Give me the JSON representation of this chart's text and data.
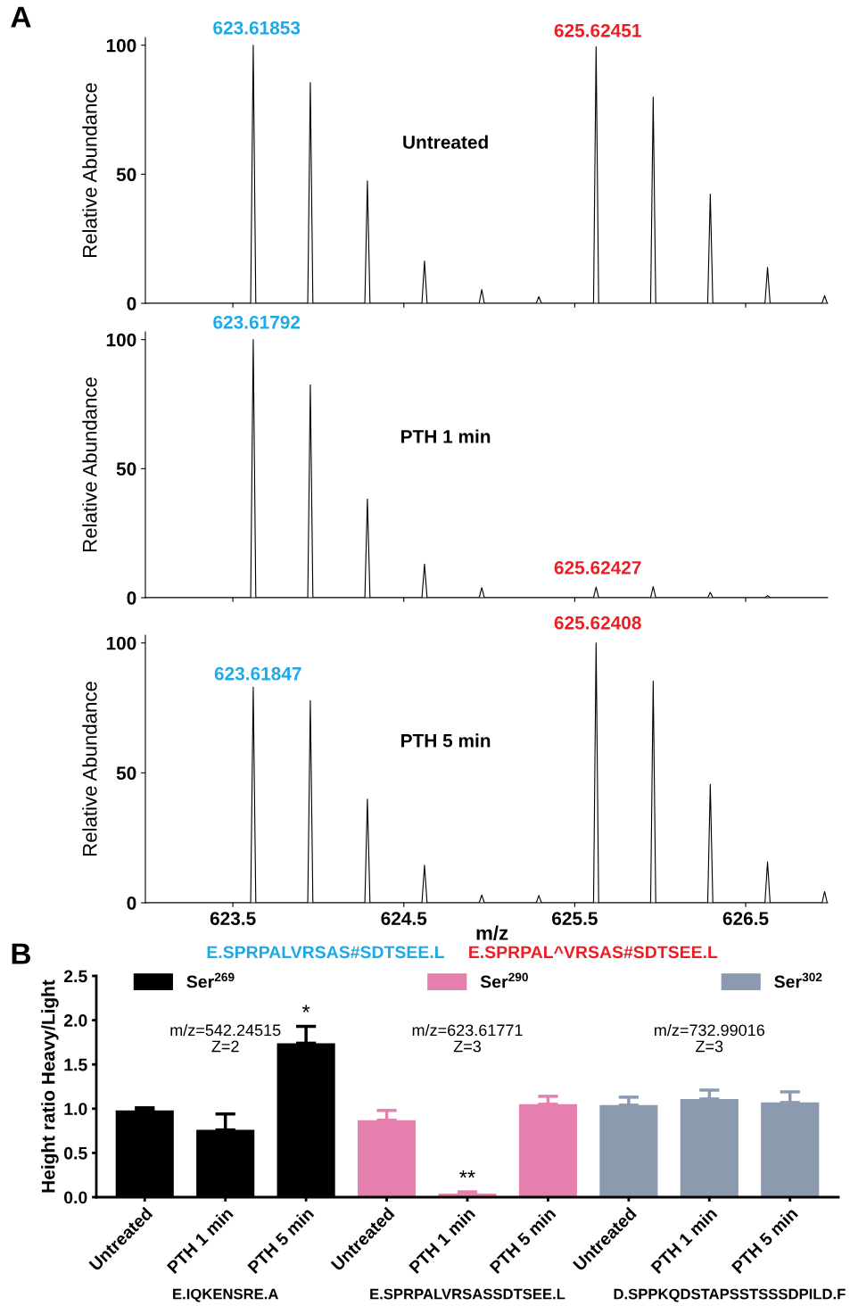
{
  "chart_data": [
    {
      "type": "line",
      "title": "Untreated",
      "ylabel": "Relative Abundance",
      "xlim": [
        622.988,
        626.98
      ],
      "ylim": [
        0,
        103
      ],
      "xticks": [
        623.5,
        624.5,
        625.5,
        626.5
      ],
      "yticks": [
        0,
        50,
        100
      ],
      "tick_labels": "y",
      "x": [
        622.988,
        623.604,
        623.619,
        623.634,
        623.938,
        623.953,
        623.968,
        624.272,
        624.287,
        624.302,
        624.606,
        624.621,
        624.636,
        624.941,
        624.956,
        624.971,
        625.275,
        625.29,
        625.305,
        625.61,
        625.625,
        625.64,
        625.944,
        625.959,
        625.974,
        626.278,
        626.293,
        626.308,
        626.613,
        626.628,
        626.643,
        626.947,
        626.962,
        626.977,
        626.98
      ],
      "series": [
        {
          "color": "#000000",
          "values": [
            0,
            0,
            100,
            0,
            0,
            85.5,
            0,
            0,
            47.4,
            0,
            0,
            16.4,
            0,
            0,
            5.3,
            0,
            0,
            2.6,
            0,
            0,
            99.4,
            0,
            0,
            79.9,
            0,
            0,
            42.3,
            0,
            0,
            13.9,
            0,
            0,
            3.0,
            0,
            0
          ]
        }
      ],
      "annotations": [
        "A",
        "623.61853",
        "625.62451"
      ]
    },
    {
      "type": "line",
      "title": "PTH 1 min",
      "ylabel": "Relative Abundance",
      "xlim": [
        622.988,
        626.98
      ],
      "ylim": [
        0,
        103
      ],
      "xticks": [
        623.5,
        624.5,
        625.5,
        626.5
      ],
      "yticks": [
        0,
        50,
        100
      ],
      "tick_labels": "y",
      "x": [
        622.988,
        623.604,
        623.619,
        623.634,
        623.938,
        623.953,
        623.968,
        624.272,
        624.287,
        624.302,
        624.606,
        624.621,
        624.636,
        624.941,
        624.956,
        624.971,
        625.61,
        625.625,
        625.64,
        625.944,
        625.959,
        625.974,
        626.278,
        626.293,
        626.308,
        626.613,
        626.628,
        626.643,
        626.98
      ],
      "series": [
        {
          "color": "#000000",
          "values": [
            0,
            0,
            100,
            0,
            0,
            82.5,
            0,
            0,
            38.3,
            0,
            0,
            13.0,
            0,
            0,
            3.9,
            0,
            0,
            4.1,
            0,
            0,
            4.3,
            0,
            0,
            2.1,
            0,
            0,
            0.8,
            0,
            0
          ]
        }
      ],
      "annotations": [
        "623.61792",
        "625.62427"
      ]
    },
    {
      "type": "line",
      "title": "PTH 5 min",
      "ylabel": "Relative Abundance",
      "xlabel": "m/z",
      "xlim": [
        622.988,
        626.98
      ],
      "ylim": [
        0,
        103
      ],
      "xticks": [
        623.5,
        624.5,
        625.5,
        626.5
      ],
      "yticks": [
        0,
        50,
        100
      ],
      "x": [
        622.988,
        623.604,
        623.619,
        623.634,
        623.938,
        623.953,
        623.968,
        624.272,
        624.287,
        624.302,
        624.606,
        624.621,
        624.636,
        624.941,
        624.956,
        624.971,
        625.275,
        625.29,
        625.305,
        625.61,
        625.625,
        625.64,
        625.944,
        625.959,
        625.974,
        626.278,
        626.293,
        626.308,
        626.613,
        626.628,
        626.643,
        626.947,
        626.962,
        626.977,
        626.98
      ],
      "series": [
        {
          "color": "#000000",
          "values": [
            0,
            0,
            83.0,
            0,
            0,
            77.8,
            0,
            0,
            39.9,
            0,
            0,
            14.5,
            0,
            0,
            3.0,
            0,
            0,
            2.8,
            0,
            0,
            100,
            0,
            0,
            85.3,
            0,
            0,
            45.6,
            0,
            0,
            15.8,
            0,
            0,
            4.3,
            0,
            0
          ]
        }
      ],
      "annotations": [
        "623.61847",
        "625.62408",
        "E.SPRPALVRSAS#SDTSEE.L",
        "E.SPRPAL^VRSAS#SDTSEE.L"
      ]
    },
    {
      "type": "bar",
      "ylabel": "Height ratio Heavy/Light",
      "categories": [
        "Untreated",
        "PTH 1 min",
        "PTH 5 min",
        "Untreated",
        "PTH 1 min",
        "PTH 5 min",
        "Untreated",
        "PTH 1 min",
        "PTH 5 min"
      ],
      "ylim": [
        0,
        2.5
      ],
      "yticks": [
        {
          "value": 0,
          "label": "0.0"
        },
        {
          "value": 0.5,
          "label": "0.5"
        },
        {
          "value": 1,
          "label": "1.0"
        },
        {
          "value": 1.5,
          "label": "1.5"
        },
        {
          "value": 2,
          "label": "2.0"
        },
        {
          "value": 2.5,
          "label": "2.5"
        }
      ],
      "legend": "top",
      "series": [
        {
          "name": "Ser$^{269}$",
          "color": "#000000",
          "values": [
            0.98,
            0.76,
            1.74,
            null,
            null,
            null,
            null,
            null,
            null
          ],
          "errors": [
            [
              0.98,
              1.01
            ],
            [
              0.76,
              0.94
            ],
            [
              1.74,
              1.93
            ],
            null,
            null,
            null,
            null,
            null,
            null
          ],
          "value_labels": [
            null,
            null,
            "*",
            null,
            null,
            null,
            null,
            null,
            null
          ]
        },
        {
          "name": "Ser$^{290}$",
          "color": "#e57fae",
          "values": [
            null,
            null,
            null,
            0.87,
            0.04,
            1.05,
            null,
            null,
            null
          ],
          "errors": [
            null,
            null,
            null,
            [
              0.87,
              0.98
            ],
            [
              0.04,
              0.06
            ],
            [
              1.05,
              1.14
            ],
            null,
            null,
            null
          ],
          "value_labels": [
            null,
            null,
            null,
            null,
            "**",
            null,
            null,
            null,
            null
          ]
        },
        {
          "name": "Ser$^{302}$",
          "color": "#8c9ab0",
          "values": [
            null,
            null,
            null,
            null,
            null,
            null,
            1.04,
            1.11,
            1.07
          ],
          "errors": [
            null,
            null,
            null,
            null,
            null,
            null,
            [
              1.04,
              1.13
            ],
            [
              1.11,
              1.21
            ],
            [
              1.07,
              1.19
            ]
          ]
        }
      ],
      "annotations": [
        "B",
        "m/z=542.24515\nZ=2",
        "m/z=623.61771\nZ=3",
        "m/z=732.99016\nZ=3",
        "E.IQKENSRE.A",
        "E.SPRPALVRSASSDTSEE.L",
        "D.SPPKQDSTAPSSTSSSDPILD.F"
      ]
    }
  ]
}
